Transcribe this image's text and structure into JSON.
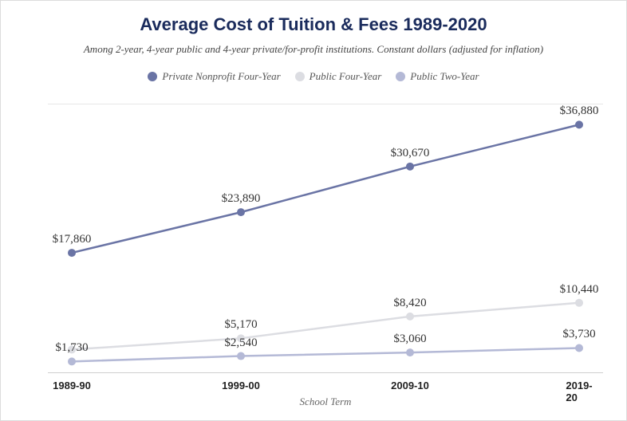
{
  "title": {
    "text": "Average Cost of Tuition & Fees 1989-2020",
    "fontsize": 22,
    "color": "#1a2b5c"
  },
  "subtitle": {
    "text": "Among 2-year, 4-year public and 4-year private/for-profit institutions. Constant dollars (adjusted for inflation)",
    "fontsize": 13,
    "color": "#444444"
  },
  "legend": {
    "fontsize": 13,
    "items": [
      {
        "label": "Private Nonprofit Four-Year",
        "color": "#6a74a5"
      },
      {
        "label": "Public Four-Year",
        "color": "#dcdde2"
      },
      {
        "label": "Public Two-Year",
        "color": "#b4b9d6"
      }
    ]
  },
  "chart": {
    "type": "line",
    "background_color": "#ffffff",
    "x_categories": [
      "1989-90",
      "1999-00",
      "2009-10",
      "2019-20"
    ],
    "x_axis_label": "School Term",
    "ylim": [
      0,
      40000
    ],
    "line_width": 2.5,
    "marker_radius": 5,
    "label_fontsize": 15,
    "xtick_fontsize": 13,
    "series": [
      {
        "name": "Private Nonprofit Four-Year",
        "color": "#6a74a5",
        "values": [
          17860,
          23890,
          30670,
          36880
        ],
        "labels": [
          "$17,860",
          "$23,890",
          "$30,670",
          "$36,880"
        ],
        "label_offsets_y": [
          -8,
          -8,
          -8,
          -8
        ],
        "label_offsets_x": [
          0,
          0,
          0,
          0
        ]
      },
      {
        "name": "Public Four-Year",
        "color": "#dcdde2",
        "values": [
          3500,
          5170,
          8420,
          10440
        ],
        "labels": [
          "",
          "$5,170",
          "$8,420",
          "$10,440"
        ],
        "label_offsets_y": [
          0,
          -8,
          -8,
          -8
        ],
        "label_offsets_x": [
          0,
          0,
          0,
          0
        ]
      },
      {
        "name": "Public Two-Year",
        "color": "#b4b9d6",
        "values": [
          1730,
          2540,
          3060,
          3730
        ],
        "labels": [
          "$1,730",
          "$2,540",
          "$3,060",
          "$3,730"
        ],
        "label_offsets_y": [
          -8,
          -8,
          -8,
          -8
        ],
        "label_offsets_x": [
          0,
          0,
          0,
          0
        ]
      }
    ]
  }
}
